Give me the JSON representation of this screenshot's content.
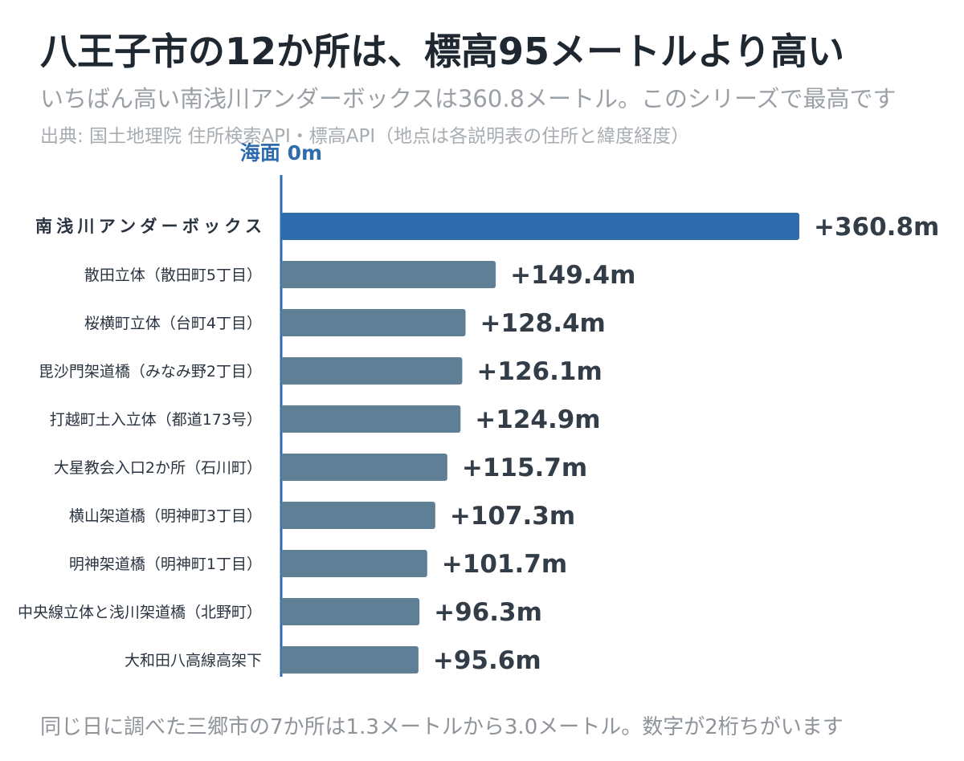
{
  "header": {
    "title": "八王子市の12か所は、標高95メートルより高い",
    "subtitle": "いちばん高い南浅川アンダーボックスは360.8メートル。このシリーズで最高です",
    "source": "出典: 国土地理院 住所検索API・標高API（地点は各説明表の住所と緯度経度）"
  },
  "footnote": "同じ日に調べた三郷市の7か所は1.3メートルから3.0メートル。数字が2桁ちがいます",
  "colors": {
    "highlight": "#2f6cad",
    "bar": "#5e7f96",
    "axis": "#2f6cad"
  },
  "chart_data": {
    "type": "bar",
    "orientation": "horizontal",
    "baseline_label": "海面 0m",
    "categories": [
      "南浅川アンダーボックス",
      "散田立体（散田町5丁目）",
      "桜横町立体（台町4丁目）",
      "毘沙門架道橋（みなみ野2丁目）",
      "打越町土入立体（都道173号）",
      "大星教会入口2か所（石川町）",
      "横山架道橋（明神町3丁目）",
      "明神架道橋（明神町1丁目）",
      "中央線立体と浅川架道橋（北野町）",
      "大和田八高線高架下"
    ],
    "values": [
      360.8,
      149.4,
      128.4,
      126.1,
      124.9,
      115.7,
      107.3,
      101.7,
      96.3,
      95.6
    ],
    "value_labels": [
      "+360.8m",
      "+149.4m",
      "+128.4m",
      "+126.1m",
      "+124.9m",
      "+115.7m",
      "+107.3m",
      "+101.7m",
      "+96.3m",
      "+95.6m"
    ],
    "highlight_index": 0,
    "xlim": [
      0,
      360.8
    ],
    "grid": false
  }
}
